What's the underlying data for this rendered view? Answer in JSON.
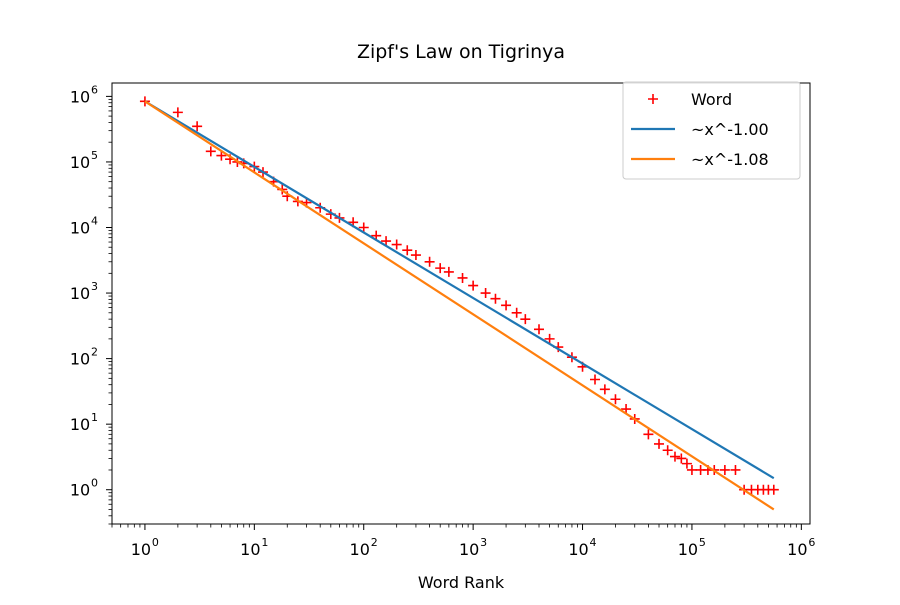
{
  "chart_data": {
    "type": "scatter",
    "title": "Zipf's Law on Tigrinya",
    "xlabel": "Word Rank",
    "ylabel": "",
    "xscale": "log",
    "yscale": "log",
    "xlim": [
      0.5,
      1200000
    ],
    "ylim": [
      0.3,
      1600000
    ],
    "grid": false,
    "legend_position": "upper right",
    "x_ticks": [
      {
        "base": "10",
        "exp": "0",
        "value": 1
      },
      {
        "base": "10",
        "exp": "1",
        "value": 10
      },
      {
        "base": "10",
        "exp": "2",
        "value": 100
      },
      {
        "base": "10",
        "exp": "3",
        "value": 1000
      },
      {
        "base": "10",
        "exp": "4",
        "value": 10000
      },
      {
        "base": "10",
        "exp": "5",
        "value": 100000
      },
      {
        "base": "10",
        "exp": "6",
        "value": 1000000
      }
    ],
    "y_ticks": [
      {
        "base": "10",
        "exp": "0",
        "value": 1
      },
      {
        "base": "10",
        "exp": "1",
        "value": 10
      },
      {
        "base": "10",
        "exp": "2",
        "value": 100
      },
      {
        "base": "10",
        "exp": "3",
        "value": 1000
      },
      {
        "base": "10",
        "exp": "4",
        "value": 10000
      },
      {
        "base": "10",
        "exp": "5",
        "value": 100000
      },
      {
        "base": "10",
        "exp": "6",
        "value": 1000000
      }
    ],
    "series": [
      {
        "name": "Word",
        "kind": "scatter",
        "marker": "+",
        "color": "#ff0000",
        "x": [
          1,
          2,
          3,
          4,
          5,
          6,
          7,
          8,
          10,
          12,
          15,
          18,
          20,
          25,
          30,
          40,
          50,
          60,
          80,
          100,
          130,
          160,
          200,
          250,
          300,
          400,
          500,
          600,
          800,
          1000,
          1300,
          1600,
          2000,
          2500,
          3000,
          4000,
          5000,
          6000,
          8000,
          10000,
          13000,
          16000,
          20000,
          25000,
          30000,
          40000,
          50000,
          60000,
          70000,
          80000,
          90000,
          100000,
          120000,
          140000,
          160000,
          200000,
          250000,
          300000,
          350000,
          400000,
          450000,
          500000,
          560000
        ],
        "y": [
          840000,
          570000,
          350000,
          145000,
          125000,
          110000,
          100000,
          95000,
          85000,
          70000,
          50000,
          38000,
          30000,
          25000,
          24000,
          20000,
          16000,
          14000,
          12000,
          10000,
          7500,
          6200,
          5500,
          4500,
          3800,
          3000,
          2400,
          2100,
          1700,
          1300,
          1000,
          820,
          650,
          500,
          400,
          280,
          200,
          150,
          105,
          75,
          48,
          34,
          24,
          17,
          12,
          7,
          5,
          4,
          3.2,
          3,
          2.5,
          2,
          2,
          2,
          2,
          2,
          2,
          1,
          1,
          1,
          1,
          1,
          1
        ]
      },
      {
        "name": "~x^-1.00",
        "kind": "line",
        "color": "#1f77b4",
        "x": [
          1,
          560000
        ],
        "y": [
          840000,
          1.5
        ]
      },
      {
        "name": "~x^-1.08",
        "kind": "line",
        "color": "#ff7f0e",
        "x": [
          1,
          560000
        ],
        "y": [
          840000,
          0.5
        ]
      }
    ]
  }
}
